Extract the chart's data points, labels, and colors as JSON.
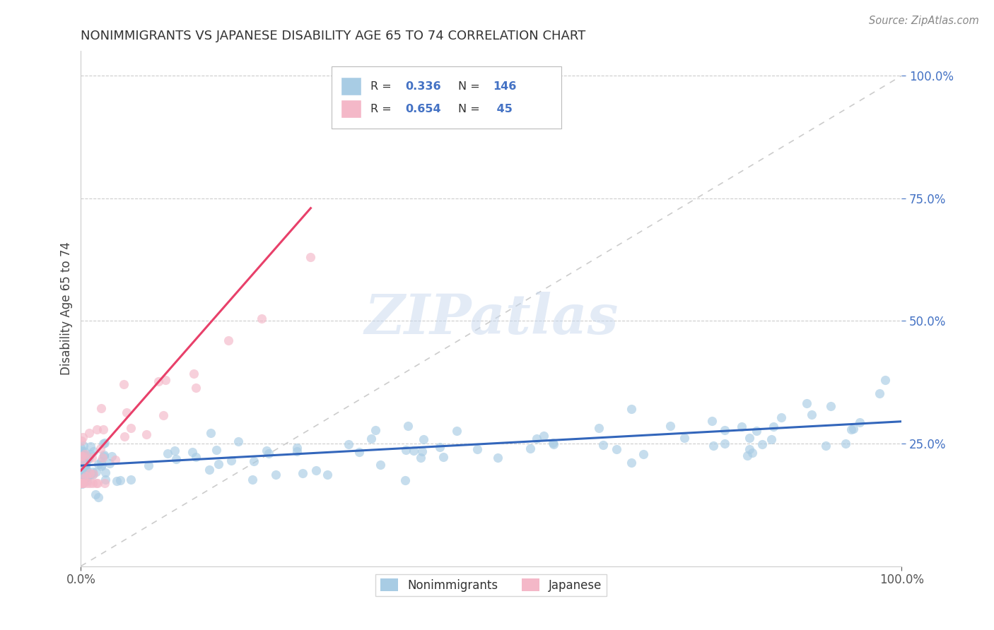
{
  "title": "NONIMMIGRANTS VS JAPANESE DISABILITY AGE 65 TO 74 CORRELATION CHART",
  "source": "Source: ZipAtlas.com",
  "ylabel": "Disability Age 65 to 74",
  "blue_R": 0.336,
  "blue_N": 146,
  "pink_R": 0.654,
  "pink_N": 45,
  "blue_color": "#a8cce4",
  "pink_color": "#f4b8c8",
  "blue_line_color": "#3366bb",
  "pink_line_color": "#e8406a",
  "ref_line_color": "#cccccc",
  "watermark_text": "ZIPatlas",
  "watermark_color": "#c8d8ee",
  "legend_label_blue": "Nonimmigrants",
  "legend_label_pink": "Japanese",
  "title_fontsize": 13,
  "axis_color": "#888888",
  "ytick_color": "#4472c4",
  "blue_trend_x": [
    0.0,
    1.0
  ],
  "blue_trend_y": [
    0.205,
    0.295
  ],
  "pink_trend_x": [
    0.0,
    0.28
  ],
  "pink_trend_y": [
    0.195,
    0.73
  ],
  "xlim": [
    0.0,
    1.0
  ],
  "ylim": [
    0.0,
    1.05
  ],
  "yticks": [
    0.25,
    0.5,
    0.75,
    1.0
  ],
  "ytick_labels": [
    "25.0%",
    "50.0%",
    "75.0%",
    "100.0%"
  ]
}
